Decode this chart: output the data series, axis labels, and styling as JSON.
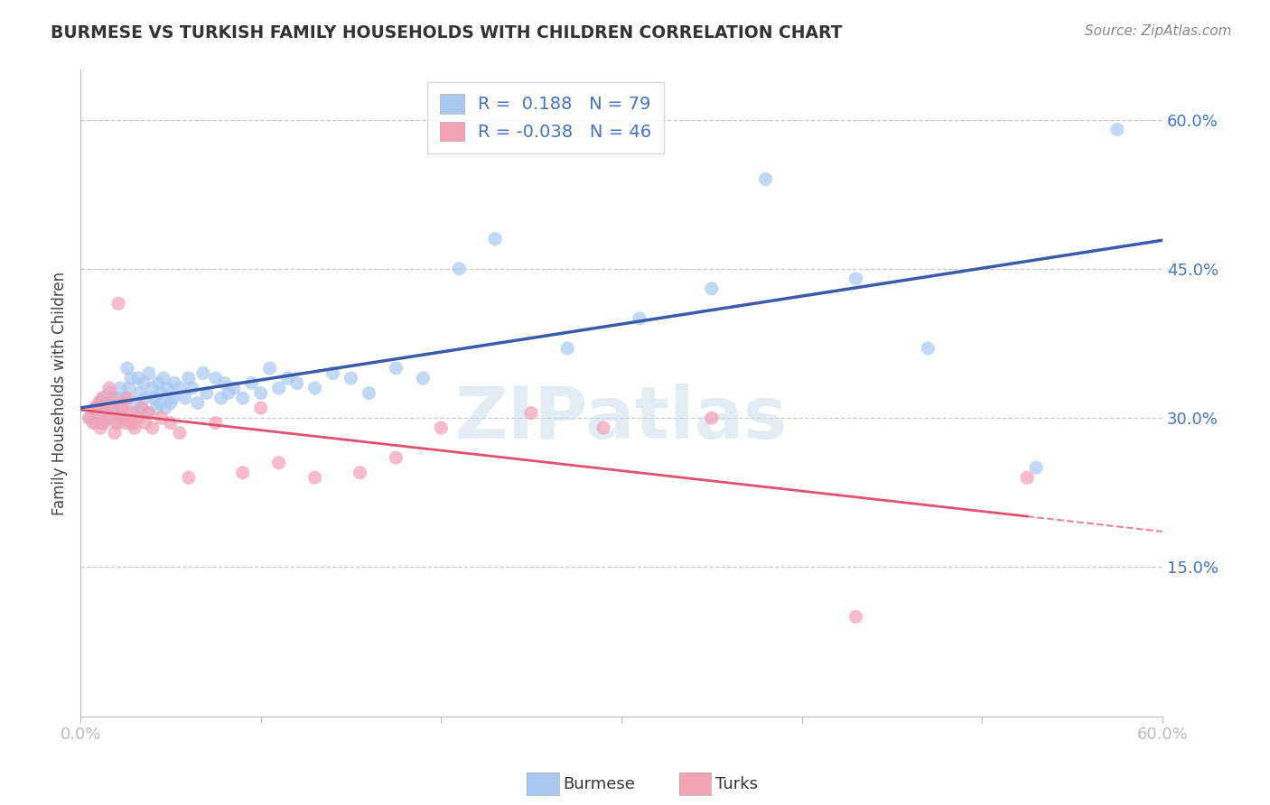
{
  "title": "BURMESE VS TURKISH FAMILY HOUSEHOLDS WITH CHILDREN CORRELATION CHART",
  "source": "Source: ZipAtlas.com",
  "ylabel": "Family Households with Children",
  "xlim": [
    0.0,
    0.6
  ],
  "ylim": [
    0.0,
    0.65
  ],
  "yticks": [
    0.0,
    0.15,
    0.3,
    0.45,
    0.6
  ],
  "xticks": [
    0.0,
    0.1,
    0.2,
    0.3,
    0.4,
    0.5,
    0.6
  ],
  "burmese_color": "#A8C8F0",
  "turks_color": "#F4A0B5",
  "burmese_line_color": "#3A5BAA",
  "turks_line_color": "#E05070",
  "burmese_R": 0.188,
  "burmese_N": 79,
  "turks_R": -0.038,
  "turks_N": 46,
  "text_color": "#4472C4",
  "burmese_x": [
    0.005,
    0.008,
    0.009,
    0.01,
    0.011,
    0.012,
    0.013,
    0.014,
    0.015,
    0.016,
    0.017,
    0.018,
    0.019,
    0.02,
    0.021,
    0.022,
    0.023,
    0.024,
    0.025,
    0.026,
    0.027,
    0.028,
    0.029,
    0.03,
    0.031,
    0.032,
    0.033,
    0.034,
    0.035,
    0.036,
    0.037,
    0.038,
    0.04,
    0.041,
    0.042,
    0.043,
    0.044,
    0.045,
    0.046,
    0.047,
    0.048,
    0.05,
    0.051,
    0.052,
    0.055,
    0.058,
    0.06,
    0.062,
    0.065,
    0.068,
    0.07,
    0.075,
    0.078,
    0.08,
    0.082,
    0.085,
    0.09,
    0.095,
    0.1,
    0.105,
    0.11,
    0.115,
    0.12,
    0.13,
    0.14,
    0.15,
    0.16,
    0.175,
    0.19,
    0.21,
    0.23,
    0.27,
    0.31,
    0.35,
    0.38,
    0.43,
    0.47,
    0.53,
    0.575
  ],
  "burmese_y": [
    0.3,
    0.295,
    0.31,
    0.305,
    0.315,
    0.295,
    0.32,
    0.31,
    0.3,
    0.325,
    0.31,
    0.315,
    0.305,
    0.32,
    0.295,
    0.33,
    0.31,
    0.3,
    0.32,
    0.35,
    0.33,
    0.34,
    0.305,
    0.295,
    0.315,
    0.34,
    0.325,
    0.31,
    0.335,
    0.32,
    0.305,
    0.345,
    0.33,
    0.32,
    0.31,
    0.335,
    0.315,
    0.325,
    0.34,
    0.31,
    0.33,
    0.315,
    0.32,
    0.335,
    0.33,
    0.32,
    0.34,
    0.33,
    0.315,
    0.345,
    0.325,
    0.34,
    0.32,
    0.335,
    0.325,
    0.33,
    0.32,
    0.335,
    0.325,
    0.35,
    0.33,
    0.34,
    0.335,
    0.33,
    0.345,
    0.34,
    0.325,
    0.35,
    0.34,
    0.45,
    0.48,
    0.37,
    0.4,
    0.43,
    0.54,
    0.44,
    0.37,
    0.25,
    0.59
  ],
  "turks_x": [
    0.005,
    0.007,
    0.008,
    0.009,
    0.01,
    0.011,
    0.012,
    0.013,
    0.014,
    0.015,
    0.016,
    0.017,
    0.018,
    0.019,
    0.02,
    0.021,
    0.022,
    0.023,
    0.024,
    0.025,
    0.026,
    0.027,
    0.028,
    0.03,
    0.032,
    0.034,
    0.036,
    0.038,
    0.04,
    0.045,
    0.05,
    0.055,
    0.06,
    0.075,
    0.09,
    0.1,
    0.11,
    0.13,
    0.155,
    0.175,
    0.2,
    0.25,
    0.29,
    0.35,
    0.43,
    0.525
  ],
  "turks_y": [
    0.3,
    0.295,
    0.31,
    0.305,
    0.315,
    0.29,
    0.32,
    0.295,
    0.31,
    0.3,
    0.33,
    0.31,
    0.32,
    0.285,
    0.295,
    0.415,
    0.3,
    0.31,
    0.315,
    0.295,
    0.32,
    0.305,
    0.295,
    0.29,
    0.3,
    0.31,
    0.295,
    0.305,
    0.29,
    0.3,
    0.295,
    0.285,
    0.24,
    0.295,
    0.245,
    0.31,
    0.255,
    0.24,
    0.245,
    0.26,
    0.29,
    0.305,
    0.29,
    0.3,
    0.1,
    0.24
  ]
}
